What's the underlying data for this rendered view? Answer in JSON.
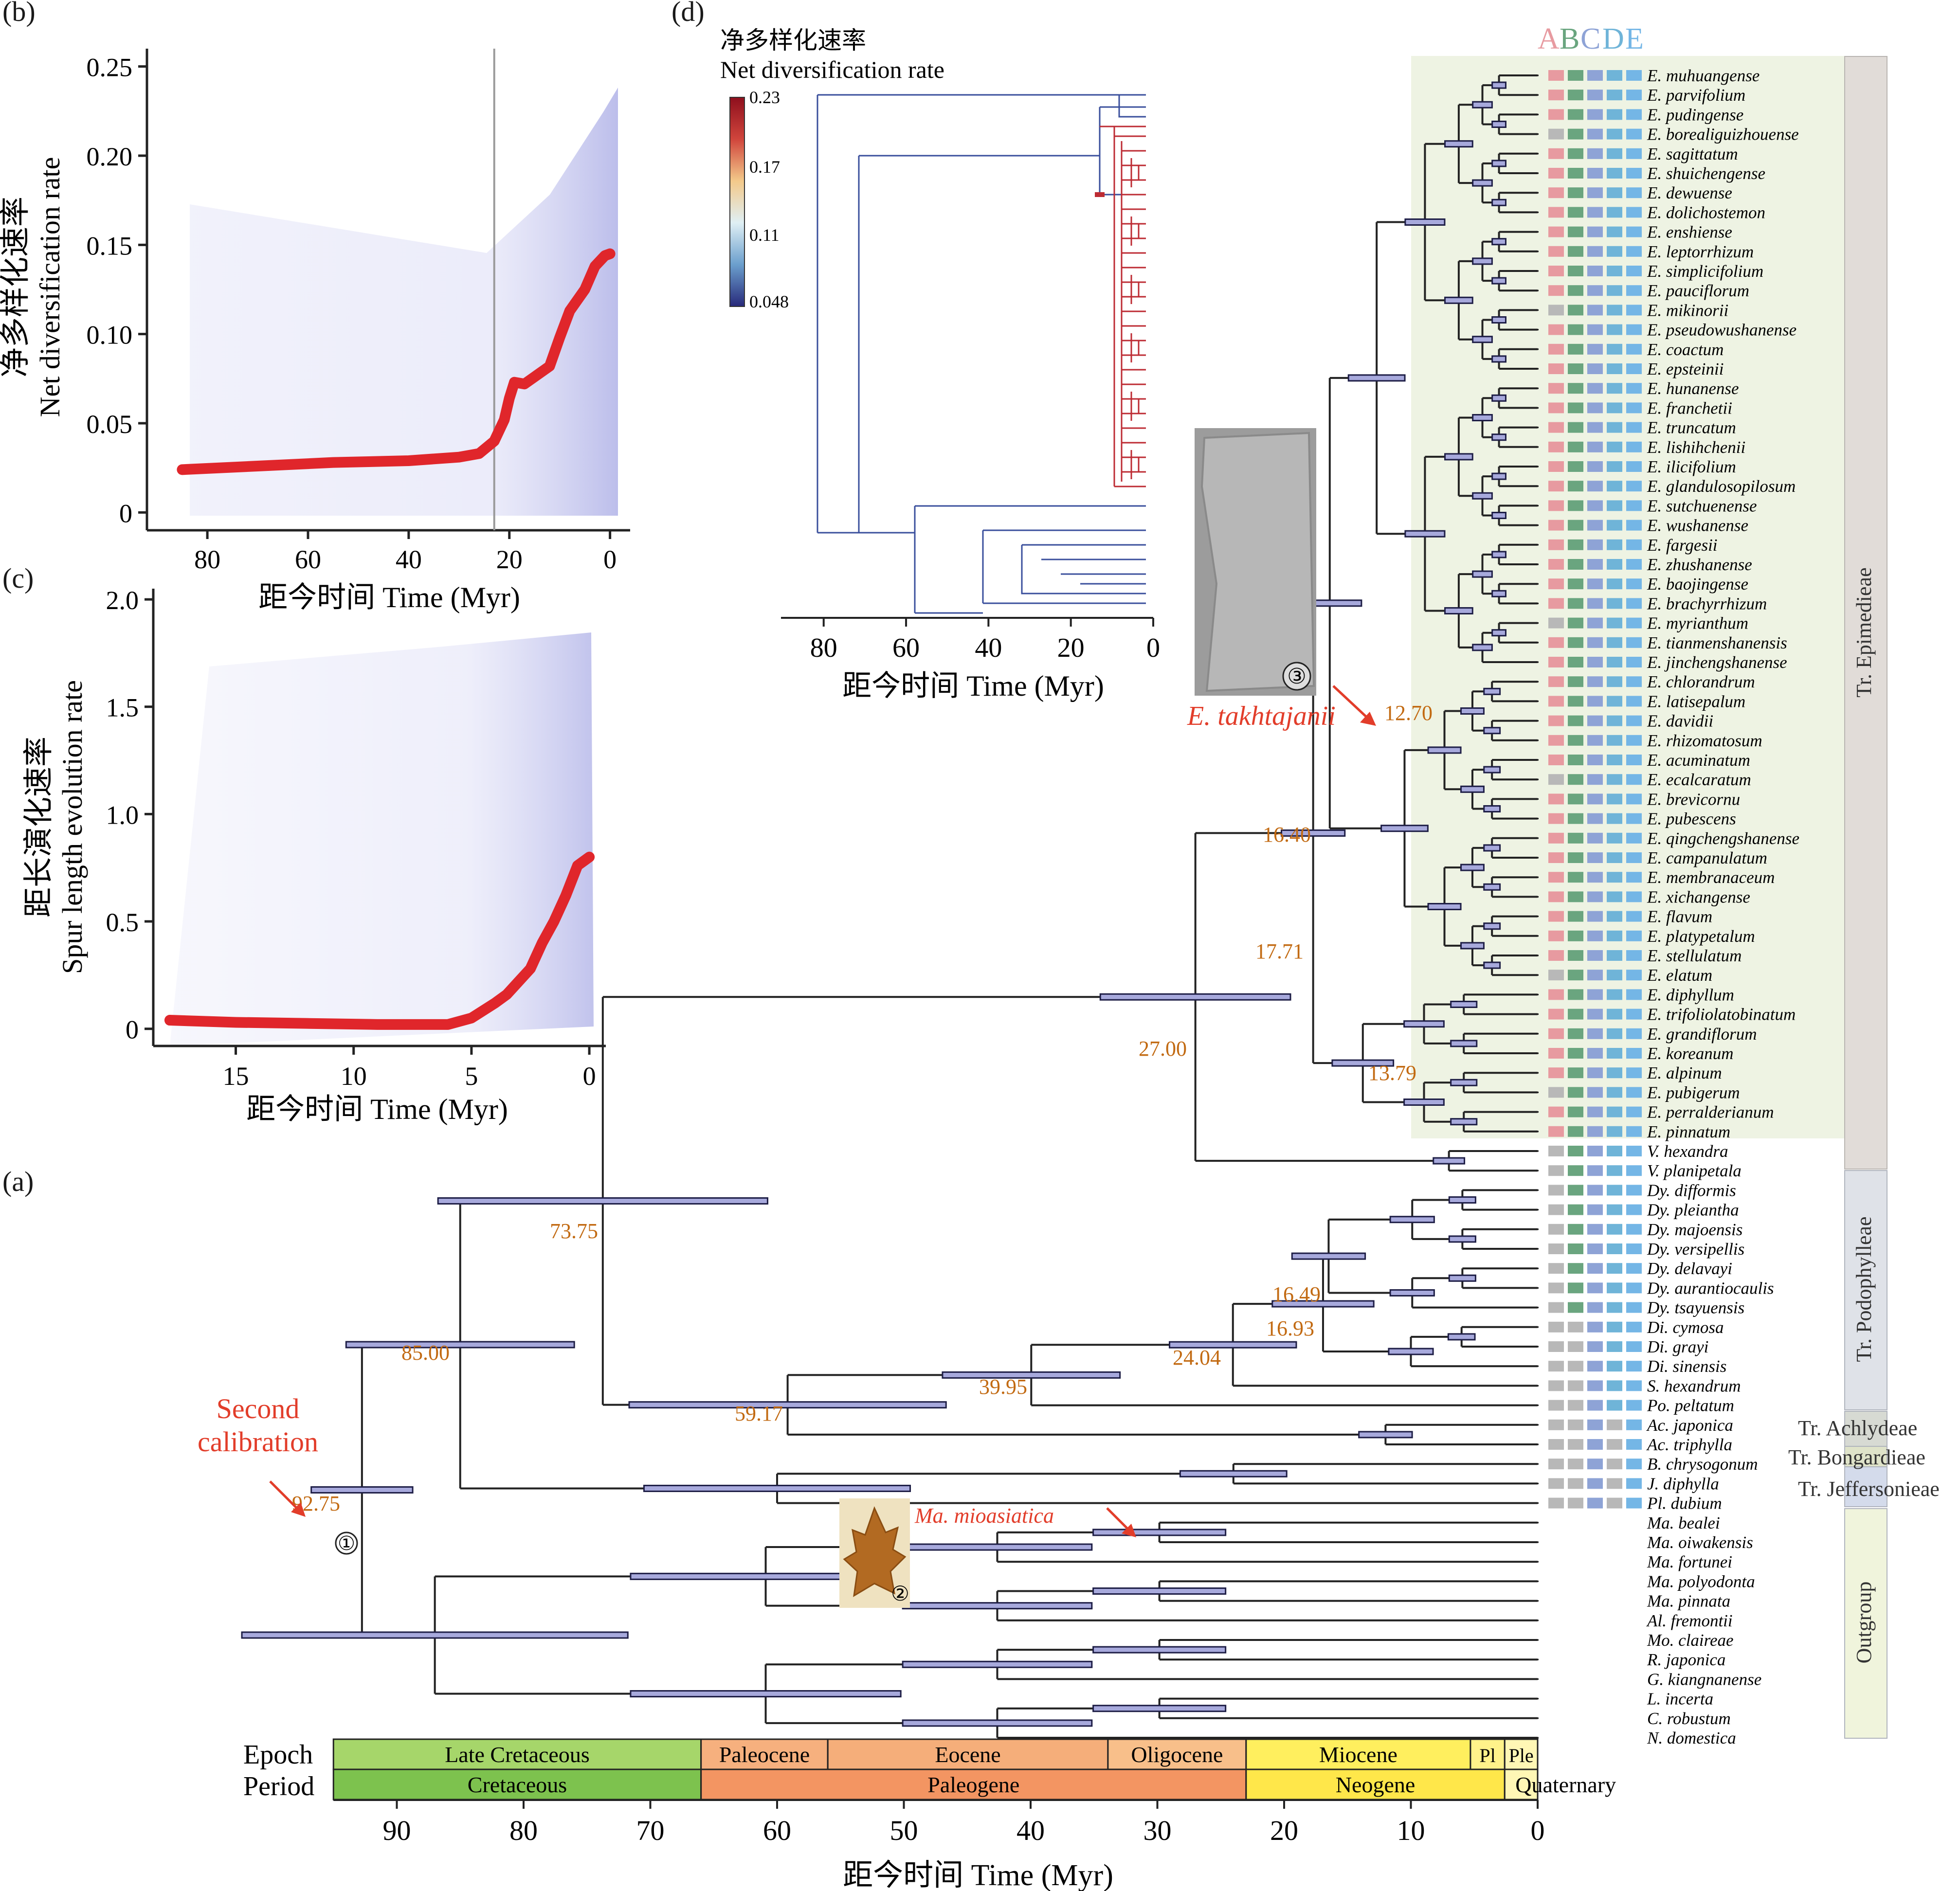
{
  "panel_labels": {
    "a": "(a)",
    "b": "(b)",
    "c": "(c)",
    "d": "(d)"
  },
  "panel_b": {
    "ylabel_cn": "净多样化速率",
    "ylabel_en": "Net diversification rate",
    "xlabel": "距今时间 Time (Myr)",
    "yticks": [
      "0",
      "0.05",
      "0.10",
      "0.15",
      "0.20",
      "0.25"
    ],
    "xticks": [
      "80",
      "60",
      "40",
      "20",
      "0"
    ]
  },
  "panel_c": {
    "ylabel_cn": "距长演化速率",
    "ylabel_en": "Spur length evolution rate",
    "xlabel": "距今时间 Time (Myr)",
    "yticks": [
      "0",
      "0.5",
      "1.0",
      "1.5",
      "2.0"
    ],
    "xticks": [
      "15",
      "10",
      "5",
      "0"
    ]
  },
  "panel_d": {
    "title_cn": "净多样化速率",
    "title_en": "Net diversification rate",
    "colorbar_ticks": [
      "0.23",
      "0.17",
      "0.11",
      "0.048"
    ],
    "xlabel": "距今时间 Time (Myr)",
    "xticks": [
      "80",
      "60",
      "40",
      "20",
      "0"
    ]
  },
  "panel_a": {
    "xlabel": "距今时间 Time (Myr)",
    "xticks": [
      "90",
      "80",
      "70",
      "60",
      "50",
      "40",
      "30",
      "20",
      "10",
      "0"
    ],
    "epoch_title": "Epoch",
    "period_title": "Period",
    "epochs": [
      "Late Cretaceous",
      "Paleocene",
      "Eocene",
      "Oligocene",
      "Miocene",
      "Pl",
      "Ple"
    ],
    "periods": [
      "Cretaceous",
      "Paleogene",
      "Neogene",
      "Quaternary"
    ],
    "node_ages": [
      "92.75",
      "85.00",
      "73.75",
      "59.17",
      "39.95",
      "24.04",
      "16.93",
      "16.49",
      "27.00",
      "17.71",
      "16.40",
      "12.70",
      "13.79"
    ],
    "second_calibration": "Second\ncalibration",
    "fossils": {
      "f1": "①",
      "f2": "Ma. mioasiatica",
      "f2_num": "②",
      "f3": "E. takhtajanii",
      "f3_num": "③"
    },
    "trait_header": [
      "A",
      "B",
      "C",
      "D",
      "E"
    ],
    "trait_header_colors": [
      "#e79aa0",
      "#6aa57f",
      "#8ea3d6",
      "#6fb4d8",
      "#74b6e6"
    ],
    "tribes": [
      "Tr. Epimedieae",
      "Tr. Podophylleae",
      "Tr. Achlydeae",
      "Tr. Bongardieae",
      "Tr. Jeffersonieae",
      "Outgroup"
    ],
    "taxa": [
      "E. muhuangense",
      "E. parvifolium",
      "E. pudingense",
      "E. borealiguizhouense",
      "E. sagittatum",
      "E. shuichengense",
      "E. dewuense",
      "E. dolichostemon",
      "E. enshiense",
      "E. leptorrhizum",
      "E. simplicifolium",
      "E. pauciflorum",
      "E. mikinorii",
      "E. pseudowushanense",
      "E. coactum",
      "E. epsteinii",
      "E. hunanense",
      "E. franchetii",
      "E. truncatum",
      "E. lishihchenii",
      "E. ilicifolium",
      "E. glandulosopilosum",
      "E. sutchuenense",
      "E. wushanense",
      "E. fargesii",
      "E. zhushanense",
      "E. baojingense",
      "E. brachyrrhizum",
      "E. myrianthum",
      "E. tianmenshanensis",
      "E. jinchengshanense",
      "E. chlorandrum",
      "E. latisepalum",
      "E. davidii",
      "E. rhizomatosum",
      "E. acuminatum",
      "E. ecalcaratum",
      "E. brevicornu",
      "E. pubescens",
      "E. qingchengshanense",
      "E. campanulatum",
      "E. membranaceum",
      "E. xichangense",
      "E. flavum",
      "E. platypetalum",
      "E. stellulatum",
      "E. elatum",
      "E. diphyllum",
      "E. trifoliolatobinatum",
      "E. grandiflorum",
      "E. koreanum",
      "E. alpinum",
      "E. pubigerum",
      "E. perralderianum",
      "E. pinnatum",
      "V. hexandra",
      "V. planipetala",
      "Dy. difformis",
      "Dy. pleiantha",
      "Dy. majoensis",
      "Dy. versipellis",
      "Dy. delavayi",
      "Dy. aurantiocaulis",
      "Dy. tsayuensis",
      "Di. cymosa",
      "Di. grayi",
      "Di. sinensis",
      "S. hexandrum",
      "Po. peltatum",
      "Ac. japonica",
      "Ac. triphylla",
      "B. chrysogonum",
      "J. diphylla",
      "Pl. dubium",
      "Ma. bealei",
      "Ma. oiwakensis",
      "Ma. fortunei",
      "Ma. polyodonta",
      "Ma. pinnata",
      "Al. fremontii",
      "Mo. claireae",
      "R. japonica",
      "G. kiangnanense",
      "L. incerta",
      "C. robustum",
      "N. domestica"
    ]
  },
  "chart_data": [
    {
      "type": "line",
      "title": "",
      "xlabel": "距今时间 Time (Myr)",
      "ylabel": "净多样化速率 Net diversification rate",
      "xlim": [
        92,
        -4
      ],
      "ylim": [
        -0.01,
        0.26
      ],
      "series": [
        {
          "x": [
            85,
            70,
            55,
            40,
            30,
            26,
            23,
            21,
            20,
            19,
            17,
            15,
            12,
            10,
            8,
            5,
            3,
            1,
            0
          ],
          "values": [
            0.024,
            0.026,
            0.028,
            0.029,
            0.031,
            0.033,
            0.04,
            0.052,
            0.064,
            0.073,
            0.072,
            0.076,
            0.082,
            0.098,
            0.113,
            0.125,
            0.138,
            0.144,
            0.145
          ]
        }
      ],
      "reference_line_x": 23
    },
    {
      "type": "line",
      "title": "",
      "xlabel": "距今时间 Time (Myr)",
      "ylabel": "距长演化速率 Spur length evolution rate",
      "xlim": [
        18.5,
        -0.7
      ],
      "ylim": [
        -0.08,
        2.05
      ],
      "series": [
        {
          "x": [
            17.8,
            15,
            12,
            9,
            6,
            5,
            4,
            3.5,
            3,
            2.5,
            2,
            1.5,
            1,
            0.5,
            0
          ],
          "values": [
            0.04,
            0.03,
            0.025,
            0.02,
            0.02,
            0.05,
            0.12,
            0.16,
            0.22,
            0.28,
            0.4,
            0.5,
            0.62,
            0.76,
            0.8
          ]
        }
      ]
    }
  ],
  "colors": {
    "ancestral": "#bd2b33",
    "slow": "#3a4f9c",
    "axis": "#222222",
    "bar": "#a7a9dc",
    "age": "#c26a12",
    "arrow": "#e23d2a",
    "epimedieae_bg": "#eef3e3",
    "podo_bg": "#dfe2e8",
    "outgroup_bg": "#f0f4dc",
    "sidebar": "#e1dcd8"
  }
}
